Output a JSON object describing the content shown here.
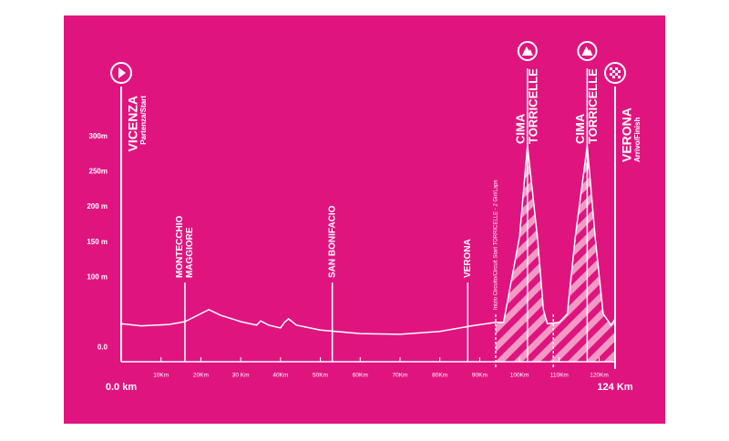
{
  "chart_data": {
    "type": "line",
    "color": "#ffffff",
    "background": "#e0147f",
    "x": [
      0,
      5,
      12,
      16,
      22,
      25,
      30,
      34,
      35,
      37,
      40,
      41,
      42,
      44,
      50,
      60,
      70,
      80,
      88,
      94,
      96,
      100,
      102,
      104.5,
      106,
      107,
      110,
      112,
      114,
      117,
      119,
      121,
      123,
      124
    ],
    "values": [
      34,
      31,
      33,
      37,
      54,
      46,
      37,
      32,
      38,
      32,
      28,
      36,
      41,
      32,
      25,
      20,
      19,
      23,
      31,
      36,
      36,
      157,
      287,
      157,
      54,
      34,
      36,
      48,
      157,
      287,
      157,
      48,
      32,
      41
    ],
    "xlim": [
      0,
      124
    ],
    "xticks": [
      {
        "value": 0,
        "label": "0.0 km"
      },
      {
        "value": 10,
        "label": "10Km"
      },
      {
        "value": 20,
        "label": "20Km"
      },
      {
        "value": 30,
        "label": "30 Km"
      },
      {
        "value": 40,
        "label": "40Km"
      },
      {
        "value": 50,
        "label": "50Km"
      },
      {
        "value": 60,
        "label": "60Km"
      },
      {
        "value": 70,
        "label": "70Km"
      },
      {
        "value": 80,
        "label": "80Km"
      },
      {
        "value": 90,
        "label": "90Km"
      },
      {
        "value": 100,
        "label": "100Km"
      },
      {
        "value": 110,
        "label": "110Km"
      },
      {
        "value": 120,
        "label": "120Km"
      },
      {
        "value": 124,
        "label": "124 Km"
      }
    ],
    "ylim": [
      -20,
      340
    ],
    "yticks": [
      {
        "value": 300,
        "label": "300m"
      },
      {
        "value": 250,
        "label": "250m"
      },
      {
        "value": 200,
        "label": "200 m"
      },
      {
        "value": 150,
        "label": "150 m"
      },
      {
        "value": 100,
        "label": "100 m"
      },
      {
        "value": 0,
        "label": "0.0"
      }
    ],
    "annotations": [
      {
        "x": 0,
        "lines": [
          "VICENZA"
        ],
        "sub": "Partenza/Start",
        "icon": "start"
      },
      {
        "x": 16,
        "lines": [
          "MONTECCHIO",
          "MAGGIORE"
        ]
      },
      {
        "x": 53,
        "lines": [
          "SAN BONIFACIO"
        ]
      },
      {
        "x": 87,
        "lines": [
          "VERONA"
        ]
      },
      {
        "x": 94,
        "lines": [
          "Inizio Circuito/Circuit Start TORRICELLE - 2 Giri/Laps"
        ],
        "dashed": true
      },
      {
        "x": 102,
        "lines": [
          "CIMA",
          "TORRICELLE"
        ],
        "icon": "climb"
      },
      {
        "x": 117,
        "lines": [
          "CIMA",
          "TORRICELLE"
        ],
        "icon": "climb"
      },
      {
        "x": 124,
        "lines": [
          "VERONA"
        ],
        "sub": "Arrivo/Finish",
        "icon": "finish"
      }
    ]
  }
}
